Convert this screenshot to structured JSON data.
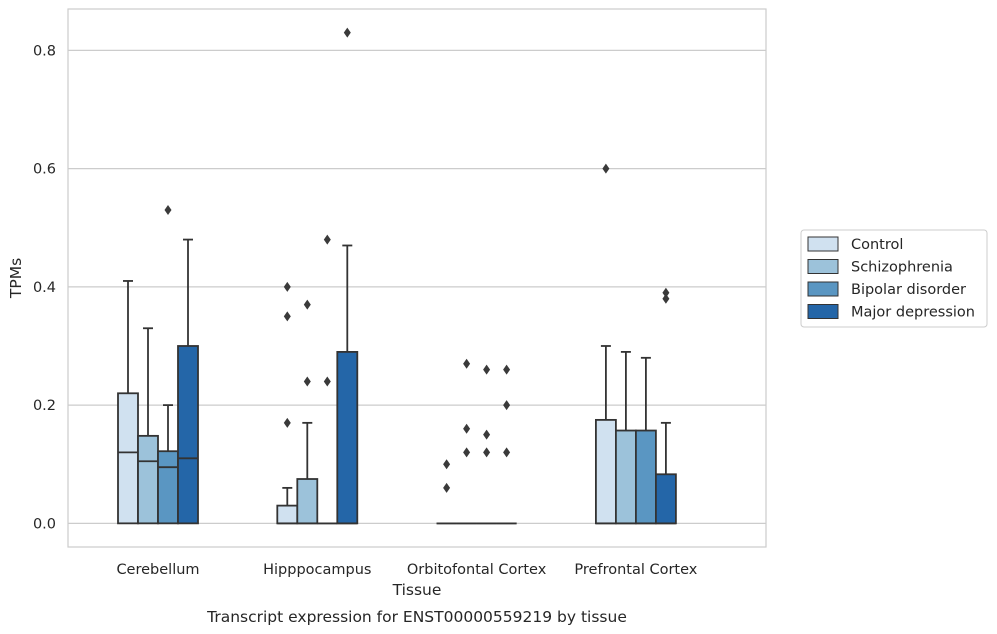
{
  "chart_data": {
    "type": "boxplot",
    "caption": "Transcript expression for ENST00000559219 by tissue",
    "xlabel": "Tissue",
    "ylabel": "TPMs",
    "ylim": [
      -0.04,
      0.87
    ],
    "yticks": [
      0.0,
      0.2,
      0.4,
      0.6,
      0.8
    ],
    "ytick_labels": [
      "0.0",
      "0.2",
      "0.4",
      "0.6",
      "0.8"
    ],
    "grid": "horizontal",
    "legend_position": "right",
    "categories": [
      "Cerebellum",
      "Hipppocampus",
      "Orbitofontal Cortex",
      "Prefrontal Cortex"
    ],
    "series": [
      {
        "name": "Control",
        "color": "#d0e1f0",
        "boxes": [
          {
            "q1": 0.0,
            "median": 0.12,
            "q3": 0.22,
            "whisker_low": 0.0,
            "whisker_high": 0.41,
            "outliers": []
          },
          {
            "q1": 0.0,
            "median": 0.0,
            "q3": 0.03,
            "whisker_low": 0.0,
            "whisker_high": 0.06,
            "outliers": [
              0.17,
              0.35,
              0.4
            ]
          },
          {
            "q1": 0.0,
            "median": 0.0,
            "q3": 0.0,
            "whisker_low": 0.0,
            "whisker_high": 0.0,
            "outliers": [
              0.06,
              0.1
            ]
          },
          {
            "q1": 0.0,
            "median": 0.0,
            "q3": 0.175,
            "whisker_low": 0.0,
            "whisker_high": 0.3,
            "outliers": [
              0.6
            ]
          }
        ]
      },
      {
        "name": "Schizophrenia",
        "color": "#9cc2da",
        "boxes": [
          {
            "q1": 0.0,
            "median": 0.105,
            "q3": 0.148,
            "whisker_low": 0.0,
            "whisker_high": 0.33,
            "outliers": []
          },
          {
            "q1": 0.0,
            "median": 0.0,
            "q3": 0.075,
            "whisker_low": 0.0,
            "whisker_high": 0.17,
            "outliers": [
              0.24,
              0.37
            ]
          },
          {
            "q1": 0.0,
            "median": 0.0,
            "q3": 0.0,
            "whisker_low": 0.0,
            "whisker_high": 0.0,
            "outliers": [
              0.12,
              0.16,
              0.27
            ]
          },
          {
            "q1": 0.0,
            "median": 0.0,
            "q3": 0.157,
            "whisker_low": 0.0,
            "whisker_high": 0.29,
            "outliers": []
          }
        ]
      },
      {
        "name": "Bipolar disorder",
        "color": "#5a96c2",
        "boxes": [
          {
            "q1": 0.0,
            "median": 0.095,
            "q3": 0.122,
            "whisker_low": 0.0,
            "whisker_high": 0.2,
            "outliers": [
              0.53
            ]
          },
          {
            "q1": 0.0,
            "median": 0.0,
            "q3": 0.0,
            "whisker_low": 0.0,
            "whisker_high": 0.0,
            "outliers": [
              0.24,
              0.48
            ]
          },
          {
            "q1": 0.0,
            "median": 0.0,
            "q3": 0.0,
            "whisker_low": 0.0,
            "whisker_high": 0.0,
            "outliers": [
              0.12,
              0.15,
              0.26
            ]
          },
          {
            "q1": 0.0,
            "median": 0.0,
            "q3": 0.157,
            "whisker_low": 0.0,
            "whisker_high": 0.28,
            "outliers": []
          }
        ]
      },
      {
        "name": "Major depression",
        "color": "#2466a8",
        "boxes": [
          {
            "q1": 0.0,
            "median": 0.11,
            "q3": 0.3,
            "whisker_low": 0.0,
            "whisker_high": 0.48,
            "outliers": []
          },
          {
            "q1": 0.0,
            "median": 0.0,
            "q3": 0.29,
            "whisker_low": 0.0,
            "whisker_high": 0.47,
            "outliers": [
              0.83
            ]
          },
          {
            "q1": 0.0,
            "median": 0.0,
            "q3": 0.0,
            "whisker_low": 0.0,
            "whisker_high": 0.0,
            "outliers": [
              0.12,
              0.2,
              0.26
            ]
          },
          {
            "q1": 0.0,
            "median": 0.0,
            "q3": 0.083,
            "whisker_low": 0.0,
            "whisker_high": 0.17,
            "outliers": [
              0.38,
              0.39
            ]
          }
        ]
      }
    ]
  }
}
